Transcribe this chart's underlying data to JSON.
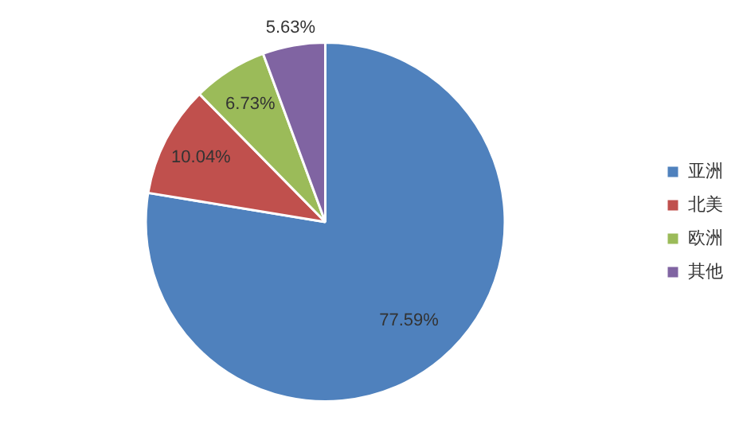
{
  "chart_data": {
    "type": "pie",
    "categories": [
      "亚洲",
      "北美",
      "欧洲",
      "其他"
    ],
    "values": [
      77.59,
      10.04,
      6.73,
      5.63
    ],
    "value_labels": [
      "77.59%",
      "10.04%",
      "6.73%",
      "5.63%"
    ],
    "colors": [
      "#4f81bd",
      "#c0504d",
      "#9bbb59",
      "#8064a2"
    ],
    "legend": "right"
  }
}
